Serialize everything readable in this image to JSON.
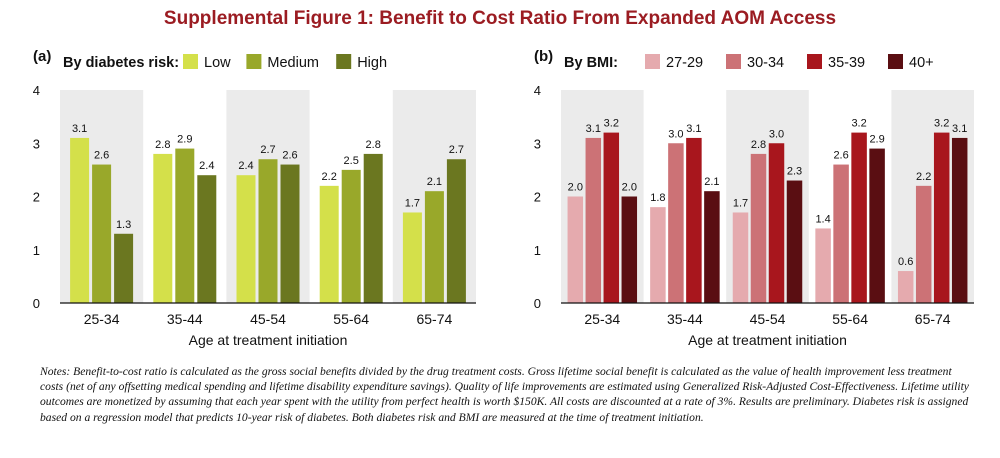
{
  "title": "Supplemental Figure 1: Benefit to Cost Ratio From Expanded AOM Access",
  "notes": "Notes: Benefit-to-cost ratio is calculated as the gross social benefits divided by the drug treatment costs. Gross lifetime social benefit is calculated as the value of health improvement less treatment costs (net of any offsetting medical spending and lifetime disability expenditure savings). Quality of life improvements are estimated using Generalized Risk-Adjusted Cost-Effectiveness. Lifetime utility outcomes are monetized by assuming that each year spent with the utility from perfect health is worth $150K. All costs are discounted at a rate of 3%. Results are preliminary. Diabetes risk is assigned based on a regression model that predicts 10-year risk of diabetes. Both diabetes risk and BMI are measured at the time of treatment initiation.",
  "chart_data": [
    {
      "type": "bar",
      "panel_label": "(a)",
      "legend_title": "By diabetes risk:",
      "legend_position": "top",
      "categories": [
        "25-34",
        "35-44",
        "45-54",
        "55-64",
        "65-74"
      ],
      "xlabel": "Age at treatment initiation",
      "ylabel": "",
      "ylim": [
        0,
        4
      ],
      "yticks": [
        "0",
        "1",
        "2",
        "3",
        "4"
      ],
      "grid": false,
      "series": [
        {
          "name": "Low",
          "color": "#d4e04a",
          "values": [
            3.1,
            2.8,
            2.4,
            2.2,
            1.7
          ],
          "labels": [
            "3.1",
            "2.8",
            "2.4",
            "2.2",
            "1.7"
          ]
        },
        {
          "name": "Medium",
          "color": "#99a82a",
          "values": [
            2.6,
            2.9,
            2.7,
            2.5,
            2.1
          ],
          "labels": [
            "2.6",
            "2.9",
            "2.7",
            "2.5",
            "2.1"
          ]
        },
        {
          "name": "High",
          "color": "#6b7720",
          "values": [
            1.3,
            2.4,
            2.6,
            2.8,
            2.7
          ],
          "labels": [
            "1.3",
            "2.4",
            "2.6",
            "2.8",
            "2.7"
          ]
        }
      ],
      "band_color": "#ebebeb"
    },
    {
      "type": "bar",
      "panel_label": "(b)",
      "legend_title": "By BMI:",
      "legend_position": "top",
      "categories": [
        "25-34",
        "35-44",
        "45-54",
        "55-64",
        "65-74"
      ],
      "xlabel": "Age at treatment initiation",
      "ylabel": "",
      "ylim": [
        0,
        4
      ],
      "yticks": [
        "0",
        "1",
        "2",
        "3",
        "4"
      ],
      "grid": false,
      "series": [
        {
          "name": "27-29",
          "color": "#e5aaae",
          "values": [
            2.0,
            1.8,
            1.7,
            1.4,
            0.6
          ],
          "labels": [
            "2.0",
            "1.8",
            "1.7",
            "1.4",
            "0.6"
          ]
        },
        {
          "name": "30-34",
          "color": "#cc7276",
          "values": [
            3.1,
            3.0,
            2.8,
            2.6,
            2.2
          ],
          "labels": [
            "3.1",
            "3.0",
            "2.8",
            "2.6",
            "2.2"
          ]
        },
        {
          "name": "35-39",
          "color": "#a8161d",
          "values": [
            3.2,
            3.1,
            3.0,
            3.2,
            3.2
          ],
          "labels": [
            "3.2",
            "3.1",
            "3.0",
            "3.2",
            "3.2"
          ]
        },
        {
          "name": "40+",
          "color": "#5a0e12",
          "values": [
            2.0,
            2.1,
            2.3,
            2.9,
            3.1
          ],
          "labels": [
            "2.0",
            "2.1",
            "2.3",
            "2.9",
            "3.1"
          ]
        }
      ],
      "band_color": "#ebebeb"
    }
  ]
}
